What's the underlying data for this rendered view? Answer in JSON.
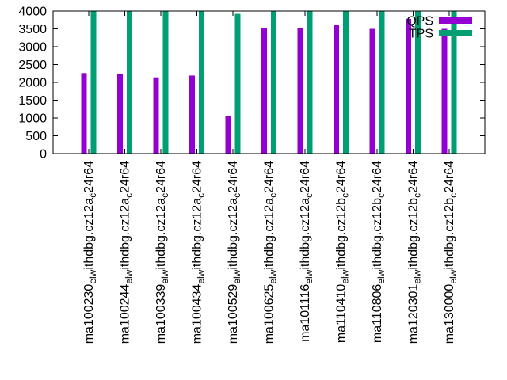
{
  "chart_data": {
    "type": "bar",
    "title": "",
    "xlabel": "",
    "ylabel": "",
    "ylim": [
      0,
      4000
    ],
    "yticks": [
      0,
      500,
      1000,
      1500,
      2000,
      2500,
      3000,
      3500,
      4000
    ],
    "grid": false,
    "legend_position": "top-right",
    "categories": [
      {
        "main": "ma100230",
        "sub1": "el",
        "mid1": "ithdbg.cz12a",
        "sub2": "w",
        "mid2": "24r64",
        "sub3": "c"
      },
      {
        "main": "ma100244",
        "sub1": "el",
        "mid1": "ithdbg.cz12a",
        "sub2": "w",
        "mid2": "24r64",
        "sub3": "c"
      },
      {
        "main": "ma100339",
        "sub1": "el",
        "mid1": "ithdbg.cz12a",
        "sub2": "w",
        "mid2": "24r64",
        "sub3": "c"
      },
      {
        "main": "ma100434",
        "sub1": "el",
        "mid1": "ithdbg.cz12a",
        "sub2": "w",
        "mid2": "24r64",
        "sub3": "c"
      },
      {
        "main": "ma100529",
        "sub1": "el",
        "mid1": "ithdbg.cz12a",
        "sub2": "w",
        "mid2": "24r64",
        "sub3": "c"
      },
      {
        "main": "ma100625",
        "sub1": "el",
        "mid1": "ithdbg.cz12a",
        "sub2": "w",
        "mid2": "24r64",
        "sub3": "c"
      },
      {
        "main": "ma101116",
        "sub1": "el",
        "mid1": "ithdbg.cz12a",
        "sub2": "w",
        "mid2": "24r64",
        "sub3": "c"
      },
      {
        "main": "ma110410",
        "sub1": "el",
        "mid1": "ithdbg.cz12b",
        "sub2": "w",
        "mid2": "24r64",
        "sub3": "c"
      },
      {
        "main": "ma110806",
        "sub1": "el",
        "mid1": "ithdbg.cz12b",
        "sub2": "w",
        "mid2": "24r64",
        "sub3": "c"
      },
      {
        "main": "ma120301",
        "sub1": "el",
        "mid1": "ithdbg.cz12b",
        "sub2": "w",
        "mid2": "24r64",
        "sub3": "c"
      },
      {
        "main": "ma130000",
        "sub1": "el",
        "mid1": "ithdbg.cz12b",
        "sub2": "w",
        "mid2": "24r64",
        "sub3": "c"
      }
    ],
    "series": [
      {
        "name": "QPS",
        "color": "#9400d3",
        "values": [
          2260,
          2240,
          2140,
          2190,
          1050,
          3530,
          3530,
          3600,
          3500,
          3780,
          3500
        ]
      },
      {
        "name": "TPS",
        "color": "#009e73",
        "values": [
          4000,
          4000,
          4000,
          4000,
          3920,
          4000,
          4000,
          4000,
          4000,
          4000,
          4000
        ]
      }
    ]
  }
}
